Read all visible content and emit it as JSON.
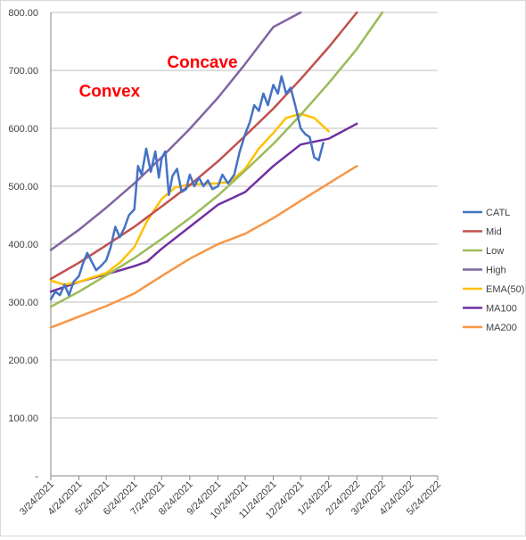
{
  "chart_data": {
    "type": "line",
    "y_ticks": [
      "-",
      "100.00",
      "200.00",
      "300.00",
      "400.00",
      "500.00",
      "600.00",
      "700.00",
      "800.00"
    ],
    "ylim": [
      0,
      800
    ],
    "x_ticks": [
      "3/24/2021",
      "4/24/2021",
      "5/24/2021",
      "6/24/2021",
      "7/24/2021",
      "8/24/2021",
      "9/24/2021",
      "10/24/2021",
      "11/24/2021",
      "12/24/2021",
      "1/24/2022",
      "2/24/2022",
      "3/24/2022",
      "4/24/2022",
      "5/24/2022"
    ],
    "xlim": [
      "2021-03-24",
      "2022-05-24"
    ],
    "grid": "horizontal",
    "legend_position": "right",
    "annotations": [
      {
        "text": "Convex",
        "x": "2021-04-24",
        "y": 655
      },
      {
        "text": "Concave",
        "x": "2021-07-30",
        "y": 705
      }
    ],
    "series": [
      {
        "name": "CATL",
        "color": "#4472c4",
        "points": [
          [
            "2021-03-24",
            305
          ],
          [
            "2021-03-29",
            318
          ],
          [
            "2021-04-03",
            312
          ],
          [
            "2021-04-08",
            330
          ],
          [
            "2021-04-13",
            312
          ],
          [
            "2021-04-18",
            335
          ],
          [
            "2021-04-24",
            345
          ],
          [
            "2021-04-28",
            365
          ],
          [
            "2021-05-03",
            385
          ],
          [
            "2021-05-08",
            370
          ],
          [
            "2021-05-13",
            355
          ],
          [
            "2021-05-18",
            362
          ],
          [
            "2021-05-24",
            372
          ],
          [
            "2021-05-29",
            395
          ],
          [
            "2021-06-03",
            430
          ],
          [
            "2021-06-08",
            412
          ],
          [
            "2021-06-13",
            428
          ],
          [
            "2021-06-18",
            450
          ],
          [
            "2021-06-24",
            460
          ],
          [
            "2021-06-28",
            535
          ],
          [
            "2021-07-02",
            520
          ],
          [
            "2021-07-07",
            565
          ],
          [
            "2021-07-12",
            525
          ],
          [
            "2021-07-17",
            560
          ],
          [
            "2021-07-21",
            515
          ],
          [
            "2021-07-24",
            548
          ],
          [
            "2021-07-28",
            560
          ],
          [
            "2021-08-01",
            485
          ],
          [
            "2021-08-05",
            518
          ],
          [
            "2021-08-10",
            530
          ],
          [
            "2021-08-15",
            490
          ],
          [
            "2021-08-20",
            495
          ],
          [
            "2021-08-24",
            520
          ],
          [
            "2021-08-29",
            500
          ],
          [
            "2021-09-03",
            515
          ],
          [
            "2021-09-08",
            500
          ],
          [
            "2021-09-13",
            510
          ],
          [
            "2021-09-18",
            495
          ],
          [
            "2021-09-24",
            500
          ],
          [
            "2021-09-29",
            520
          ],
          [
            "2021-10-05",
            505
          ],
          [
            "2021-10-12",
            520
          ],
          [
            "2021-10-18",
            560
          ],
          [
            "2021-10-24",
            590
          ],
          [
            "2021-10-29",
            610
          ],
          [
            "2021-11-03",
            640
          ],
          [
            "2021-11-08",
            630
          ],
          [
            "2021-11-13",
            660
          ],
          [
            "2021-11-18",
            640
          ],
          [
            "2021-11-24",
            675
          ],
          [
            "2021-11-29",
            660
          ],
          [
            "2021-12-03",
            690
          ],
          [
            "2021-12-08",
            660
          ],
          [
            "2021-12-13",
            670
          ],
          [
            "2021-12-18",
            640
          ],
          [
            "2021-12-24",
            600
          ],
          [
            "2021-12-29",
            590
          ],
          [
            "2022-01-03",
            585
          ],
          [
            "2022-01-08",
            550
          ],
          [
            "2022-01-13",
            545
          ],
          [
            "2022-01-18",
            575
          ]
        ]
      },
      {
        "name": "Mid",
        "color": "#c0504d",
        "points": [
          [
            "2021-03-24",
            340
          ],
          [
            "2021-04-24",
            368
          ],
          [
            "2021-05-24",
            398
          ],
          [
            "2021-06-24",
            430
          ],
          [
            "2021-07-24",
            465
          ],
          [
            "2021-08-24",
            502
          ],
          [
            "2021-09-24",
            543
          ],
          [
            "2021-10-24",
            587
          ],
          [
            "2021-11-24",
            634
          ],
          [
            "2021-12-24",
            685
          ],
          [
            "2022-01-24",
            740
          ],
          [
            "2022-02-24",
            800
          ]
        ]
      },
      {
        "name": "Low",
        "color": "#9bbb59",
        "points": [
          [
            "2021-03-24",
            292
          ],
          [
            "2021-04-24",
            318
          ],
          [
            "2021-05-24",
            346
          ],
          [
            "2021-06-24",
            376
          ],
          [
            "2021-07-24",
            409
          ],
          [
            "2021-08-24",
            445
          ],
          [
            "2021-09-24",
            484
          ],
          [
            "2021-10-24",
            527
          ],
          [
            "2021-11-24",
            573
          ],
          [
            "2021-12-24",
            623
          ],
          [
            "2022-01-24",
            678
          ],
          [
            "2022-02-24",
            737
          ],
          [
            "2022-03-24",
            800
          ]
        ]
      },
      {
        "name": "High",
        "color": "#8064a2",
        "points": [
          [
            "2021-03-24",
            390
          ],
          [
            "2021-04-24",
            425
          ],
          [
            "2021-05-24",
            463
          ],
          [
            "2021-06-24",
            505
          ],
          [
            "2021-07-24",
            550
          ],
          [
            "2021-08-24",
            599
          ],
          [
            "2021-09-24",
            653
          ],
          [
            "2021-10-24",
            711
          ],
          [
            "2021-11-24",
            775
          ],
          [
            "2021-12-24",
            800
          ]
        ]
      },
      {
        "name": "EMA(50)",
        "color": "#ffc000",
        "points": [
          [
            "2021-03-24",
            337
          ],
          [
            "2021-04-08",
            330
          ],
          [
            "2021-04-24",
            335
          ],
          [
            "2021-05-08",
            342
          ],
          [
            "2021-05-24",
            350
          ],
          [
            "2021-06-08",
            368
          ],
          [
            "2021-06-24",
            395
          ],
          [
            "2021-07-08",
            440
          ],
          [
            "2021-07-24",
            478
          ],
          [
            "2021-08-08",
            498
          ],
          [
            "2021-08-24",
            503
          ],
          [
            "2021-09-08",
            504
          ],
          [
            "2021-09-24",
            505
          ],
          [
            "2021-10-08",
            508
          ],
          [
            "2021-10-24",
            530
          ],
          [
            "2021-11-08",
            565
          ],
          [
            "2021-11-24",
            592
          ],
          [
            "2021-12-08",
            618
          ],
          [
            "2021-12-24",
            625
          ],
          [
            "2022-01-08",
            618
          ],
          [
            "2022-01-24",
            595
          ]
        ]
      },
      {
        "name": "MA100",
        "color": "#7030a0",
        "points": [
          [
            "2021-03-24",
            318
          ],
          [
            "2021-04-24",
            335
          ],
          [
            "2021-05-24",
            348
          ],
          [
            "2021-06-24",
            362
          ],
          [
            "2021-07-08",
            370
          ],
          [
            "2021-07-24",
            392
          ],
          [
            "2021-08-24",
            430
          ],
          [
            "2021-09-24",
            468
          ],
          [
            "2021-10-24",
            490
          ],
          [
            "2021-11-24",
            535
          ],
          [
            "2021-12-24",
            572
          ],
          [
            "2022-01-24",
            582
          ],
          [
            "2022-02-24",
            608
          ]
        ]
      },
      {
        "name": "MA200",
        "color": "#f79646",
        "points": [
          [
            "2021-03-24",
            256
          ],
          [
            "2021-04-24",
            275
          ],
          [
            "2021-05-24",
            293
          ],
          [
            "2021-06-24",
            315
          ],
          [
            "2021-07-24",
            345
          ],
          [
            "2021-08-24",
            375
          ],
          [
            "2021-09-24",
            400
          ],
          [
            "2021-10-24",
            418
          ],
          [
            "2021-11-24",
            445
          ],
          [
            "2021-12-24",
            475
          ],
          [
            "2022-01-24",
            505
          ],
          [
            "2022-02-24",
            535
          ]
        ]
      }
    ]
  }
}
